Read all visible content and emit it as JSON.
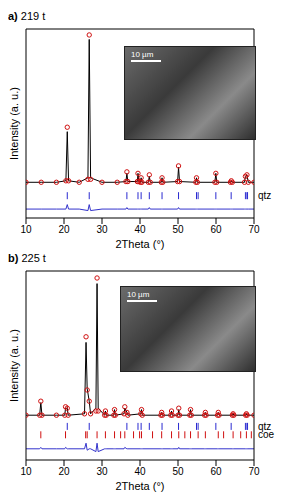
{
  "chart_data": [
    {
      "type": "line",
      "panel": "a)",
      "title": "219 t",
      "x_label": "2Theta (°)",
      "y_label": "Intensity (a. u.)",
      "xlim": [
        10,
        70
      ],
      "xticks": [
        10,
        20,
        30,
        40,
        50,
        60,
        70
      ],
      "ylim": [
        -22,
        105
      ],
      "tick_labels": "x",
      "annotations": [
        "10 µm"
      ],
      "x": [
        10,
        14,
        18,
        20.5,
        20.86,
        21.2,
        24,
        26.3,
        26.64,
        27.0,
        30,
        34,
        36.3,
        36.55,
        36.8,
        39.3,
        39.47,
        39.7,
        40.1,
        40.3,
        40.5,
        42.2,
        42.45,
        42.7,
        45.6,
        45.8,
        46.0,
        49.9,
        50.14,
        50.4,
        54.7,
        54.87,
        55.1,
        59.7,
        59.96,
        60.2,
        63.8,
        64.03,
        64.3,
        67.5,
        67.74,
        68.14,
        68.5,
        70
      ],
      "series": [
        {
          "color": "#d01010",
          "marker": "circle",
          "line_style": "none",
          "values": [
            2,
            2,
            2,
            3,
            39,
            3,
            2,
            4,
            101,
            4,
            2,
            2,
            2.5,
            9,
            2.5,
            2.5,
            8,
            2.5,
            2,
            5,
            2,
            2,
            7,
            2,
            2,
            5,
            2,
            2.5,
            13,
            2.5,
            2,
            5,
            2,
            2,
            8,
            2,
            2,
            3,
            2,
            2,
            6,
            7,
            2,
            2
          ]
        },
        {
          "color": "#000000",
          "marker": "none",
          "line_style": "solid",
          "values": [
            2,
            2,
            2,
            3,
            36,
            3,
            2,
            5,
            98,
            5,
            2,
            2,
            2.5,
            8,
            2.5,
            2.5,
            8,
            2.5,
            2,
            5,
            2,
            2,
            6,
            2,
            2,
            5,
            2,
            2.5,
            12,
            2.5,
            2,
            5,
            2,
            2,
            8,
            2,
            2,
            3,
            2,
            2,
            6,
            7,
            2,
            2
          ]
        },
        {
          "color": "#3333cc",
          "marker": "none",
          "line_style": "solid",
          "values": [
            -16,
            -16,
            -16,
            -16,
            -13,
            -16,
            -16,
            -17,
            -13,
            -17,
            -16,
            -16,
            -16,
            -15,
            -16,
            -16,
            -16,
            -16,
            -16,
            -16,
            -16,
            -16,
            -15,
            -16,
            -16,
            -16,
            -16,
            -16,
            -15,
            -16,
            -16,
            -16,
            -16,
            -16,
            -16,
            -16,
            -16,
            -16,
            -16,
            -16,
            -16,
            -16,
            -16,
            -16
          ]
        }
      ],
      "phases": [
        {
          "name": "qtz",
          "color": "#2a2ad0",
          "level": -7,
          "positions": [
            20.86,
            26.64,
            36.55,
            39.47,
            40.3,
            42.45,
            45.8,
            50.14,
            54.87,
            55.3,
            59.96,
            63.99,
            67.74,
            68.14,
            68.3
          ]
        }
      ]
    },
    {
      "type": "line",
      "panel": "b)",
      "title": "225 t",
      "x_label": "2Theta (°)",
      "y_label": "Intensity (a. u.)",
      "xlim": [
        10,
        70
      ],
      "xticks": [
        10,
        20,
        30,
        40,
        50,
        60,
        70
      ],
      "ylim": [
        -30,
        105
      ],
      "tick_labels": "x",
      "annotations": [
        "10 µm"
      ],
      "x": [
        10,
        13.6,
        13.9,
        14.2,
        18,
        20.2,
        20.4,
        20.86,
        21.1,
        25.4,
        25.8,
        26.1,
        26.64,
        27.0,
        28.4,
        28.7,
        29.0,
        30.7,
        30.9,
        31.1,
        33.1,
        33.3,
        33.5,
        35.8,
        36.0,
        36.55,
        36.8,
        40.2,
        40.4,
        40.6,
        45.5,
        45.7,
        45.9,
        48.1,
        48.3,
        48.5,
        50.0,
        50.2,
        50.4,
        53.1,
        53.3,
        53.5,
        57.0,
        57.2,
        57.4,
        60.4,
        60.6,
        60.8,
        64.3,
        64.5,
        64.7,
        67.8,
        68.0,
        68.2,
        70
      ],
      "series": [
        {
          "color": "#d01010",
          "marker": "circle",
          "line_style": "none",
          "values": [
            2,
            2,
            12,
            2,
            2,
            2,
            8,
            7,
            2,
            3,
            58,
            20,
            12,
            3,
            5,
            100,
            5,
            2,
            5,
            2,
            2,
            6,
            2,
            3,
            8,
            4,
            2,
            3,
            6,
            2,
            2,
            4,
            2,
            2,
            5,
            2,
            2,
            7,
            2,
            2,
            6,
            2,
            2,
            4,
            2,
            2,
            4,
            2,
            2,
            3,
            2,
            2,
            3,
            2,
            2
          ]
        },
        {
          "color": "#000000",
          "marker": "none",
          "line_style": "solid",
          "values": [
            2,
            2,
            11,
            2,
            2,
            2,
            7,
            7,
            2,
            3,
            54,
            21,
            12,
            3,
            7,
            96,
            7,
            2,
            5,
            2,
            2,
            6,
            2,
            3,
            7,
            4,
            2,
            3,
            6,
            2,
            2,
            4,
            2,
            2,
            5,
            2,
            2,
            6,
            2,
            2,
            6,
            2,
            2,
            4,
            2,
            2,
            4,
            2,
            2,
            3,
            2,
            2,
            3,
            2,
            2
          ]
        },
        {
          "color": "#3333cc",
          "marker": "none",
          "line_style": "solid",
          "values": [
            -22,
            -22,
            -21,
            -22,
            -22,
            -22,
            -21,
            -22,
            -22,
            -22,
            -18,
            -23,
            -22,
            -22,
            -24,
            -18,
            -24,
            -22,
            -22,
            -22,
            -22,
            -22,
            -22,
            -22,
            -21,
            -22,
            -22,
            -22,
            -22,
            -22,
            -22,
            -22,
            -22,
            -22,
            -22,
            -22,
            -22,
            -21,
            -22,
            -22,
            -22,
            -22,
            -22,
            -22,
            -22,
            -22,
            -22,
            -22,
            -22,
            -22,
            -22,
            -22,
            -22,
            -22,
            -22
          ]
        }
      ],
      "phases": [
        {
          "name": "qtz",
          "color": "#2a2ad0",
          "level": -6,
          "positions": [
            20.86,
            26.64,
            36.55,
            39.47,
            40.3,
            42.45,
            45.8,
            50.14,
            54.87,
            55.3,
            59.96,
            63.99,
            67.74,
            68.14,
            68.3
          ]
        },
        {
          "name": "coe",
          "color": "#d01010",
          "level": -12,
          "positions": [
            13.9,
            20.4,
            25.7,
            26.1,
            28.7,
            30.9,
            33.3,
            34.9,
            36.0,
            38.3,
            39.9,
            40.4,
            43.3,
            45.7,
            48.3,
            50.2,
            51.8,
            53.3,
            55.3,
            57.2,
            60.6,
            62.0,
            64.5,
            66.5,
            68.0,
            69.3
          ]
        }
      ]
    }
  ]
}
